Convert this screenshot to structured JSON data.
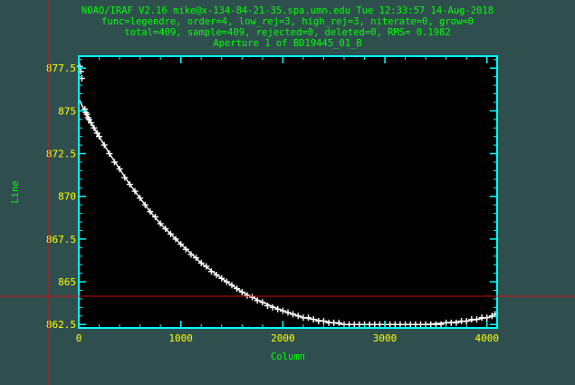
{
  "header": {
    "line1": "NOAO/IRAF V2.16 mike@x-134-84-21-35.spa.umn.edu Tue 12:33:57 14-Aug-2018",
    "line2": "func=legendre, order=4, low_rej=3, high_rej=3, niterate=0, grow=0",
    "line3": "total=409, sample=409, rejected=0, deleted=0, RMS= 0.1982",
    "line4": "Aperture 1 of BD19445_01_B"
  },
  "colors": {
    "background": "#2f4f4f",
    "frame": "#00ffff",
    "text": "#00ff00",
    "ticklabels": "#ffff00",
    "points": "#ffffff",
    "crosshair": "#cc1111",
    "plot_bg": "#000000"
  },
  "chart_data": {
    "type": "scatter",
    "xlabel": "Column",
    "ylabel": "Line",
    "xlim": [
      0,
      4100
    ],
    "ylim": [
      862.3,
      878.2
    ],
    "xticks": [
      0,
      1000,
      2000,
      3000,
      4000
    ],
    "xtick_labels": [
      "0",
      "1000",
      "2000",
      "3000",
      "4000"
    ],
    "yticks": [
      862.5,
      865,
      867.5,
      870,
      872.5,
      875,
      877.5
    ],
    "ytick_labels": [
      "862.5",
      "865",
      "867.5",
      "870",
      "872.5",
      "875",
      "877.5"
    ],
    "points_x": [
      10,
      20,
      30,
      60,
      70,
      80,
      90,
      100,
      120,
      150,
      180,
      200,
      250,
      300,
      350,
      400,
      450,
      500,
      550,
      600,
      650,
      700,
      750,
      800,
      850,
      900,
      950,
      1000,
      1050,
      1100,
      1150,
      1200,
      1250,
      1300,
      1350,
      1400,
      1450,
      1500,
      1550,
      1600,
      1650,
      1700,
      1750,
      1800,
      1850,
      1900,
      1950,
      2000,
      2050,
      2100,
      2150,
      2200,
      2250,
      2300,
      2350,
      2400,
      2450,
      2500,
      2550,
      2600,
      2650,
      2700,
      2750,
      2800,
      2850,
      2900,
      2950,
      3000,
      3050,
      3100,
      3150,
      3200,
      3250,
      3300,
      3350,
      3400,
      3450,
      3500,
      3550,
      3600,
      3650,
      3700,
      3750,
      3800,
      3850,
      3900,
      3950,
      4000,
      4050,
      4080
    ],
    "points_y": [
      877.6,
      877.3,
      876.9,
      875.1,
      874.9,
      874.8,
      874.6,
      874.5,
      874.3,
      874.0,
      873.7,
      873.5,
      873.0,
      872.5,
      872.0,
      871.6,
      871.1,
      870.7,
      870.3,
      869.9,
      869.5,
      869.1,
      868.8,
      868.4,
      868.1,
      867.8,
      867.5,
      867.2,
      866.9,
      866.6,
      866.4,
      866.1,
      865.9,
      865.6,
      865.4,
      865.2,
      865.0,
      864.8,
      864.6,
      864.4,
      864.2,
      864.1,
      863.9,
      863.8,
      863.6,
      863.5,
      863.4,
      863.3,
      863.2,
      863.1,
      863.0,
      862.9,
      862.9,
      862.8,
      862.7,
      862.7,
      862.6,
      862.6,
      862.6,
      862.5,
      862.5,
      862.5,
      862.5,
      862.5,
      862.5,
      862.5,
      862.5,
      862.5,
      862.5,
      862.5,
      862.5,
      862.5,
      862.5,
      862.5,
      862.5,
      862.5,
      862.5,
      862.5,
      862.5,
      862.6,
      862.6,
      862.6,
      862.7,
      862.7,
      862.8,
      862.8,
      862.9,
      862.9,
      863.0,
      863.1
    ],
    "fit_x": [
      0,
      100,
      200,
      300,
      400,
      500,
      600,
      700,
      800,
      900,
      1000,
      1200,
      1400,
      1600,
      1800,
      2000,
      2200,
      2400,
      2600,
      2800,
      3000,
      3200,
      3400,
      3600,
      3800,
      4000,
      4080
    ],
    "fit_y": [
      875.7,
      874.5,
      873.5,
      872.5,
      871.6,
      870.7,
      869.9,
      869.1,
      868.4,
      867.8,
      867.2,
      866.1,
      865.2,
      864.4,
      863.8,
      863.3,
      862.9,
      862.7,
      862.5,
      862.5,
      862.5,
      862.5,
      862.5,
      862.6,
      862.7,
      862.9,
      863.0
    ]
  }
}
